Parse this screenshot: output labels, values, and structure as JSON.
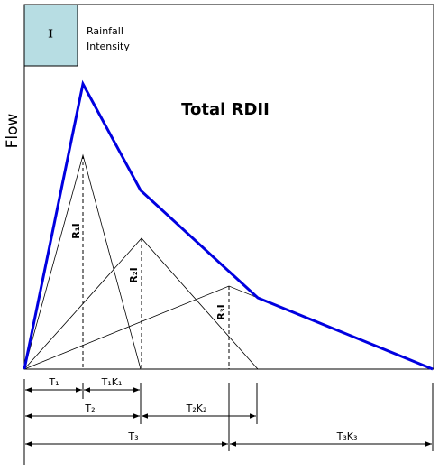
{
  "legend": {
    "symbol": "I",
    "label_line1": "Rainfall",
    "label_line2": "Intensity"
  },
  "y_axis_label": "Flow",
  "title": "Total RDII",
  "peak_labels": [
    "R₁I",
    "R₂I",
    "R₃I"
  ],
  "dimensions": {
    "t1": "T₁",
    "t1k1": "T₁K₁",
    "t2": "T₂",
    "t2k2": "T₂K₂",
    "t3": "T₃",
    "t3k3": "T₃K₃"
  }
}
